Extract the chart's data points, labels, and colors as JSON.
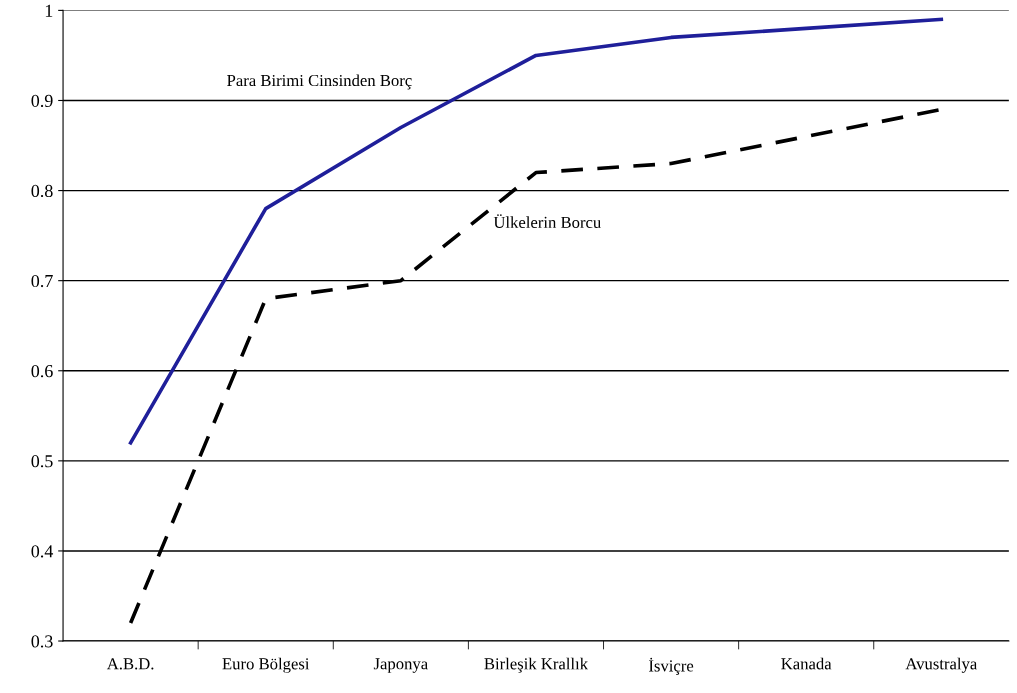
{
  "chart_data": {
    "type": "line",
    "categories": [
      "A.B.D.",
      "Euro Bölgesi",
      "Japonya",
      "Birleşik Krallık",
      "İsviçre",
      "Kanada",
      "Avustralya"
    ],
    "series": [
      {
        "name": "Para Birimi Cinsinden Borç",
        "color": "#1f1f9a",
        "line_style": "solid",
        "values": [
          0.52,
          0.78,
          0.87,
          0.95,
          0.97,
          0.98,
          0.99
        ]
      },
      {
        "name": "Ülkelerin Borcu",
        "color": "#000000",
        "line_style": "dashed",
        "values": [
          0.32,
          0.68,
          0.7,
          0.82,
          0.83,
          0.86,
          0.89
        ]
      }
    ],
    "ylim": [
      0.3,
      1
    ],
    "yticks": [
      0.3,
      0.4,
      0.5,
      0.6,
      0.7,
      0.8,
      0.9,
      1
    ],
    "grid": "y",
    "legend": false,
    "marker": "none"
  }
}
